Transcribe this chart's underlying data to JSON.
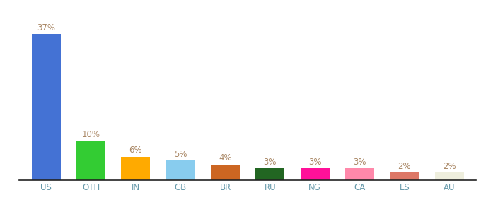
{
  "categories": [
    "US",
    "OTH",
    "IN",
    "GB",
    "BR",
    "RU",
    "NG",
    "CA",
    "ES",
    "AU"
  ],
  "values": [
    37,
    10,
    6,
    5,
    4,
    3,
    3,
    3,
    2,
    2
  ],
  "bar_colors": [
    "#4472d4",
    "#33cc33",
    "#ffaa00",
    "#88ccee",
    "#cc6622",
    "#226622",
    "#ff1199",
    "#ff88aa",
    "#dd7766",
    "#eeeedd"
  ],
  "label_color": "#aa8866",
  "background_color": "#ffffff",
  "ylim": [
    0,
    43
  ],
  "bar_width": 0.65,
  "label_fontsize": 8.5,
  "tick_fontsize": 8.5,
  "tick_color": "#6699aa"
}
